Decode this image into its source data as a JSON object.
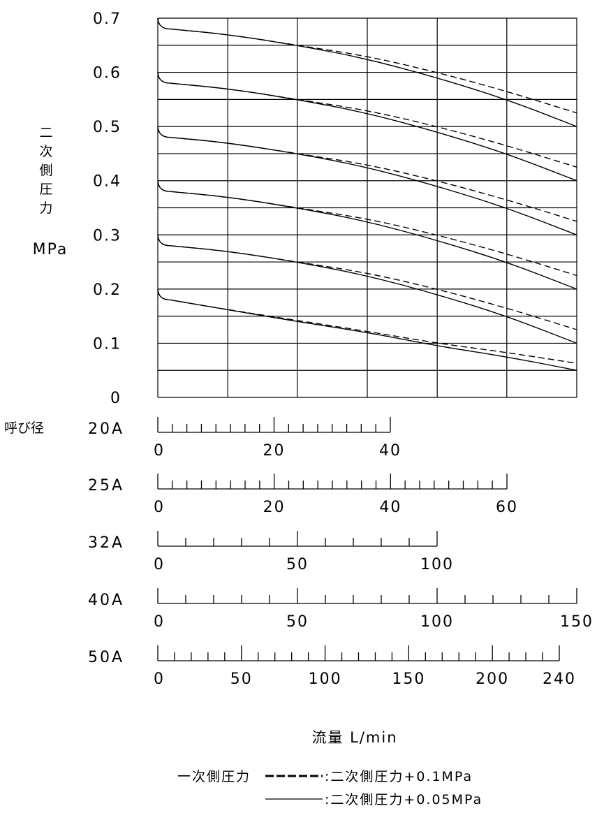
{
  "chart_data": {
    "type": "line",
    "ylabel_chars": [
      "二",
      "次",
      "側",
      "圧",
      "力"
    ],
    "yunit": "MPa",
    "ylim": [
      0,
      0.7
    ],
    "yticks": [
      "0.7",
      "0.6",
      "0.5",
      "0.4",
      "0.3",
      "0.2",
      "0.1",
      "0"
    ],
    "x_fraction_grid": [
      0,
      0.167,
      0.333,
      0.5,
      0.667,
      0.833,
      1.0
    ],
    "nominal_size_label": "呼び径",
    "scales": [
      {
        "name": "20A",
        "max": 40,
        "major": 20,
        "minor": 2.5,
        "labels": [
          "0",
          "20",
          "40"
        ]
      },
      {
        "name": "25A",
        "max": 60,
        "major": 20,
        "minor": 2.5,
        "labels": [
          "0",
          "20",
          "40",
          "60"
        ]
      },
      {
        "name": "32A",
        "max": 100,
        "major": 50,
        "minor": 10,
        "labels": [
          "0",
          "50",
          "100"
        ]
      },
      {
        "name": "40A",
        "max": 150,
        "major": 50,
        "minor": 10,
        "labels": [
          "0",
          "50",
          "100",
          "150"
        ]
      },
      {
        "name": "50A",
        "max": 240,
        "major": 50,
        "minor": 10,
        "labels": [
          "0",
          "50",
          "100",
          "150",
          "200",
          "240"
        ]
      }
    ],
    "xlabel": "流量 L/min",
    "legend": {
      "primary_label": "一次側圧力",
      "dashed": ":二次側圧力+0.1MPa",
      "solid": ":二次側圧力+0.05MPa"
    },
    "series": [
      {
        "style": "solid",
        "start": 0.7,
        "points": [
          [
            0.03,
            0.68
          ],
          [
            0.167,
            0.67
          ],
          [
            0.333,
            0.65
          ],
          [
            0.5,
            0.625
          ],
          [
            0.667,
            0.59
          ],
          [
            0.833,
            0.55
          ],
          [
            1.0,
            0.5
          ]
        ]
      },
      {
        "style": "dashed",
        "start": 0.7,
        "points": [
          [
            0.03,
            0.68
          ],
          [
            0.167,
            0.67
          ],
          [
            0.333,
            0.65
          ],
          [
            0.5,
            0.63
          ],
          [
            0.667,
            0.6
          ],
          [
            0.833,
            0.565
          ],
          [
            1.0,
            0.525
          ]
        ]
      },
      {
        "style": "solid",
        "start": 0.6,
        "points": [
          [
            0.03,
            0.58
          ],
          [
            0.167,
            0.57
          ],
          [
            0.333,
            0.55
          ],
          [
            0.5,
            0.525
          ],
          [
            0.667,
            0.49
          ],
          [
            0.833,
            0.45
          ],
          [
            1.0,
            0.4
          ]
        ]
      },
      {
        "style": "dashed",
        "start": 0.6,
        "points": [
          [
            0.03,
            0.58
          ],
          [
            0.167,
            0.57
          ],
          [
            0.333,
            0.55
          ],
          [
            0.5,
            0.53
          ],
          [
            0.667,
            0.5
          ],
          [
            0.833,
            0.465
          ],
          [
            1.0,
            0.425
          ]
        ]
      },
      {
        "style": "solid",
        "start": 0.5,
        "points": [
          [
            0.03,
            0.48
          ],
          [
            0.167,
            0.47
          ],
          [
            0.333,
            0.45
          ],
          [
            0.5,
            0.425
          ],
          [
            0.667,
            0.39
          ],
          [
            0.833,
            0.35
          ],
          [
            1.0,
            0.3
          ]
        ]
      },
      {
        "style": "dashed",
        "start": 0.5,
        "points": [
          [
            0.03,
            0.48
          ],
          [
            0.167,
            0.47
          ],
          [
            0.333,
            0.45
          ],
          [
            0.5,
            0.43
          ],
          [
            0.667,
            0.4
          ],
          [
            0.833,
            0.365
          ],
          [
            1.0,
            0.325
          ]
        ]
      },
      {
        "style": "solid",
        "start": 0.4,
        "points": [
          [
            0.03,
            0.38
          ],
          [
            0.167,
            0.37
          ],
          [
            0.333,
            0.35
          ],
          [
            0.5,
            0.325
          ],
          [
            0.667,
            0.29
          ],
          [
            0.833,
            0.25
          ],
          [
            1.0,
            0.2
          ]
        ]
      },
      {
        "style": "dashed",
        "start": 0.4,
        "points": [
          [
            0.03,
            0.38
          ],
          [
            0.167,
            0.37
          ],
          [
            0.333,
            0.35
          ],
          [
            0.5,
            0.33
          ],
          [
            0.667,
            0.3
          ],
          [
            0.833,
            0.265
          ],
          [
            1.0,
            0.225
          ]
        ]
      },
      {
        "style": "solid",
        "start": 0.3,
        "points": [
          [
            0.03,
            0.28
          ],
          [
            0.167,
            0.27
          ],
          [
            0.333,
            0.25
          ],
          [
            0.5,
            0.225
          ],
          [
            0.667,
            0.19
          ],
          [
            0.833,
            0.15
          ],
          [
            1.0,
            0.1
          ]
        ]
      },
      {
        "style": "dashed",
        "start": 0.3,
        "points": [
          [
            0.03,
            0.28
          ],
          [
            0.167,
            0.27
          ],
          [
            0.333,
            0.25
          ],
          [
            0.5,
            0.23
          ],
          [
            0.667,
            0.2
          ],
          [
            0.833,
            0.165
          ],
          [
            1.0,
            0.125
          ]
        ]
      },
      {
        "style": "solid",
        "start": 0.2,
        "points": [
          [
            0.03,
            0.18
          ],
          [
            0.167,
            0.162
          ],
          [
            0.333,
            0.14
          ],
          [
            0.5,
            0.12
          ],
          [
            0.667,
            0.095
          ],
          [
            0.833,
            0.075
          ],
          [
            1.0,
            0.05
          ]
        ]
      },
      {
        "style": "dashed",
        "start": 0.2,
        "points": [
          [
            0.03,
            0.18
          ],
          [
            0.167,
            0.162
          ],
          [
            0.333,
            0.142
          ],
          [
            0.5,
            0.122
          ],
          [
            0.667,
            0.1
          ],
          [
            0.833,
            0.083
          ],
          [
            1.0,
            0.063
          ]
        ]
      }
    ]
  }
}
